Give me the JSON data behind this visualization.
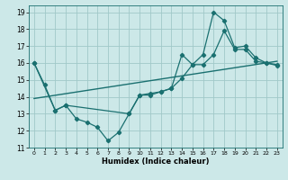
{
  "xlabel": "Humidex (Indice chaleur)",
  "bg_color": "#cce8e8",
  "grid_color": "#a0c8c8",
  "line_color": "#1a7070",
  "xlim": [
    -0.5,
    23.5
  ],
  "ylim": [
    11,
    19.4
  ],
  "xticks": [
    0,
    1,
    2,
    3,
    4,
    5,
    6,
    7,
    8,
    9,
    10,
    11,
    12,
    13,
    14,
    15,
    16,
    17,
    18,
    19,
    20,
    21,
    22,
    23
  ],
  "yticks": [
    11,
    12,
    13,
    14,
    15,
    16,
    17,
    18,
    19
  ],
  "line1_x": [
    0,
    1,
    2,
    3,
    4,
    5,
    6,
    7,
    8,
    9,
    10,
    11,
    12,
    13,
    14,
    15,
    16,
    17,
    18,
    19,
    20,
    21,
    22,
    23
  ],
  "line1_y": [
    16.0,
    14.7,
    13.2,
    13.5,
    12.7,
    12.5,
    12.2,
    11.4,
    11.9,
    13.0,
    14.1,
    14.1,
    14.3,
    14.5,
    16.5,
    15.9,
    16.5,
    19.0,
    18.5,
    16.9,
    17.0,
    16.3,
    16.0,
    15.9
  ],
  "line2_x": [
    0,
    2,
    3,
    9,
    10,
    11,
    12,
    13,
    14,
    15,
    16,
    17,
    18,
    19,
    20,
    21,
    22,
    23
  ],
  "line2_y": [
    16.0,
    13.2,
    13.5,
    13.0,
    14.1,
    14.2,
    14.3,
    14.5,
    15.1,
    15.9,
    15.9,
    16.5,
    17.9,
    16.8,
    16.8,
    16.1,
    16.0,
    15.85
  ],
  "line3_x": [
    0,
    23
  ],
  "line3_y": [
    13.9,
    16.1
  ]
}
